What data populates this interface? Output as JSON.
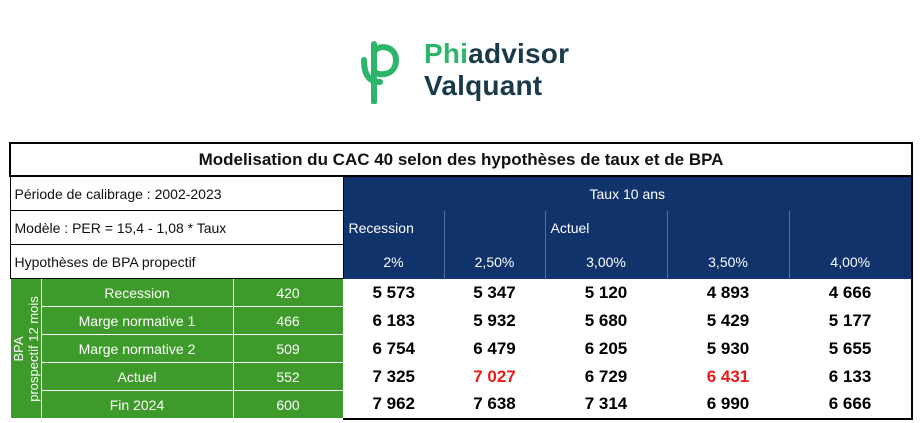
{
  "logo": {
    "line1_prefix": "Phi",
    "line1_suffix": "advisor",
    "line2": "Valquant"
  },
  "table": {
    "title": "Modelisation du CAC 40 selon des hypothèses de taux et de BPA",
    "calibration": "Période de calibrage : 2002-2023",
    "model": "Modèle : PER = 15,4 - 1,08 * Taux",
    "hypotheses": "Hypothèses de BPA propectif",
    "rate_header": "Taux 10 ans",
    "scenario_labels": [
      "Recession",
      "",
      "Actuel",
      "",
      ""
    ],
    "rates": [
      "2%",
      "2,50%",
      "3,00%",
      "3,50%",
      "4,00%"
    ],
    "side_label_line1": "BPA",
    "side_label_line2": "prospectif 12 mois",
    "rows": [
      {
        "name": "Recession",
        "bpa": "420",
        "values": [
          "5 573",
          "5 347",
          "5 120",
          "4 893",
          "4 666"
        ]
      },
      {
        "name": "Marge normative 1",
        "bpa": "466",
        "values": [
          "6 183",
          "5 932",
          "5 680",
          "5 429",
          "5 177"
        ]
      },
      {
        "name": "Marge normative 2",
        "bpa": "509",
        "values": [
          "6 754",
          "6 479",
          "6 205",
          "5 930",
          "5 655"
        ]
      },
      {
        "name": "Actuel",
        "bpa": "552",
        "values": [
          "7 325",
          "7 027",
          "6 729",
          "6 431",
          "6 133"
        ]
      },
      {
        "name": "Fin 2024",
        "bpa": "600",
        "values": [
          "7 962",
          "7 638",
          "7 314",
          "6 990",
          "6 666"
        ]
      }
    ],
    "highlight_color": "#e41c1c"
  }
}
